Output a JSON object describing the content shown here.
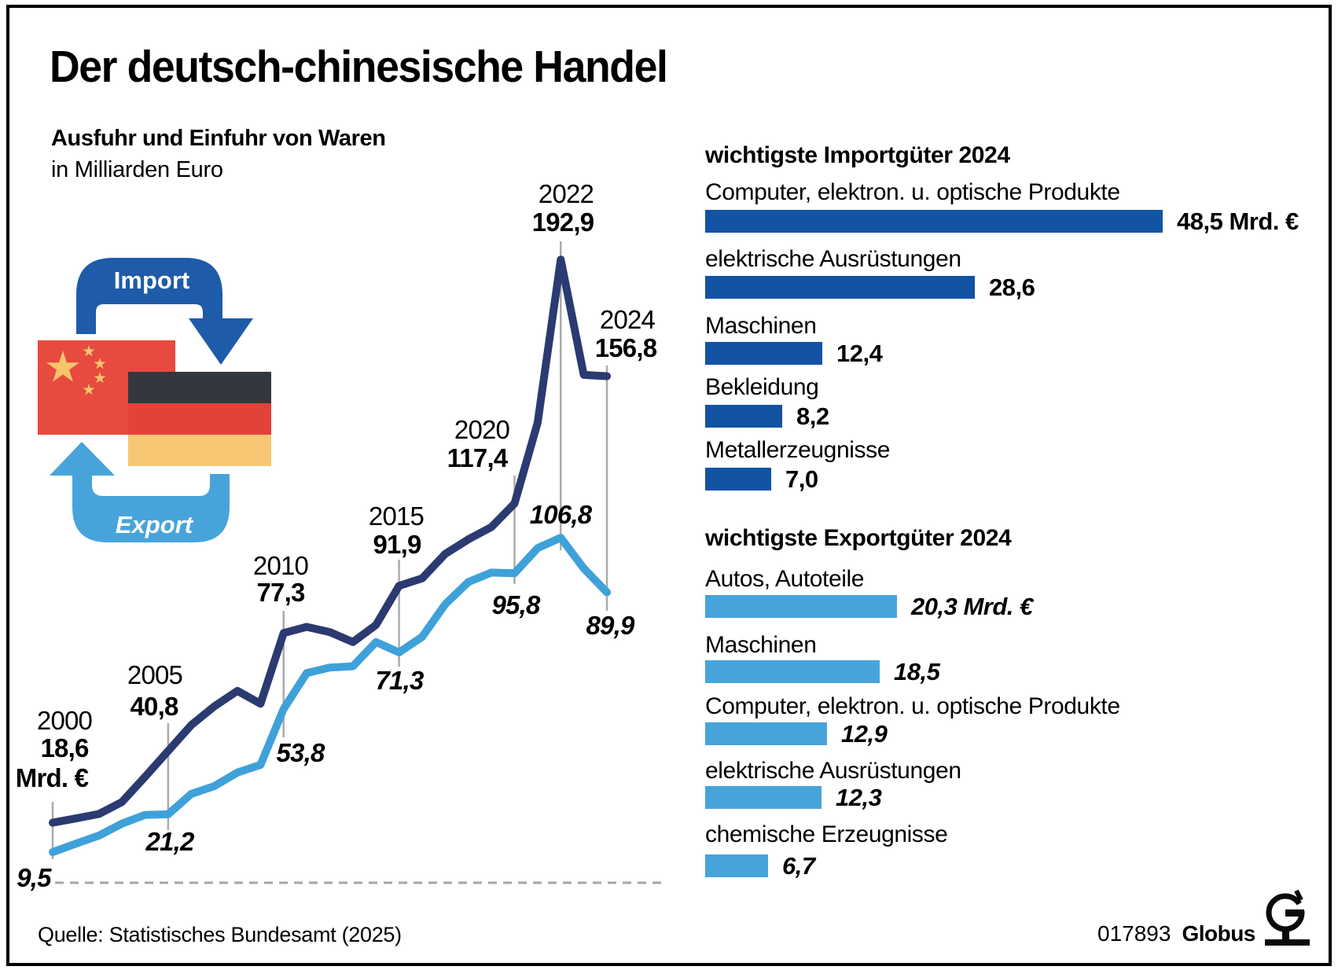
{
  "title": "Der deutsch-chinesische Handel",
  "line_chart_subtitle_bold": "Ausfuhr und Einfuhr von Waren",
  "line_chart_subtitle": "in Milliarden Euro",
  "flow": {
    "import_label": "Import",
    "export_label": "Export"
  },
  "line_labels": {
    "unit": "Mrd. €",
    "years": [
      "2000",
      "2005",
      "2010",
      "2015",
      "2020",
      "2022",
      "2024"
    ],
    "import_values": [
      "18,6",
      "40,8",
      "77,3",
      "91,9",
      "117,4",
      "192,9",
      "156,8"
    ],
    "export_values": [
      "9,5",
      "21,2",
      "53,8",
      "71,3",
      "95,8",
      "106,8",
      "89,9"
    ]
  },
  "chart_data": [
    {
      "type": "line",
      "title": "Ausfuhr und Einfuhr von Waren",
      "ylabel": "in Milliarden Euro",
      "x": [
        2000,
        2001,
        2002,
        2003,
        2004,
        2005,
        2006,
        2007,
        2008,
        2009,
        2010,
        2011,
        2012,
        2013,
        2014,
        2015,
        2016,
        2017,
        2018,
        2019,
        2020,
        2021,
        2022,
        2023,
        2024
      ],
      "series": [
        {
          "name": "Einfuhr (Import)",
          "color": "#2B3A70",
          "values": [
            18.6,
            19.9,
            21.3,
            25.0,
            32.8,
            40.8,
            48.8,
            54.6,
            59.4,
            55.4,
            77.3,
            79.2,
            77.6,
            74.5,
            79.8,
            91.9,
            94.2,
            101.8,
            106.3,
            110.1,
            117.4,
            142.4,
            192.9,
            157.2,
            156.8
          ]
        },
        {
          "name": "Ausfuhr (Export)",
          "color": "#3FA1DA",
          "values": [
            9.5,
            12.1,
            14.6,
            18.3,
            21.0,
            21.2,
            27.5,
            29.9,
            34.1,
            36.5,
            53.8,
            64.9,
            66.6,
            67.0,
            74.5,
            71.3,
            76.1,
            86.2,
            93.1,
            96.0,
            95.8,
            103.6,
            106.8,
            97.3,
            89.9
          ]
        }
      ],
      "annotated_years": [
        2000,
        2005,
        2010,
        2015,
        2020,
        2022,
        2024
      ],
      "ylim": [
        0,
        200
      ],
      "grid": "vertical ticks at annotated years only, dashed zero baseline"
    },
    {
      "type": "bar",
      "title": "wichtigste Importgüter 2024",
      "unit": "Mrd. €",
      "color": "#1253A4",
      "categories": [
        "Computer, elektron. u. optische Produkte",
        "elektrische Ausrüstungen",
        "Maschinen",
        "Bekleidung",
        "Metallerzeugnisse"
      ],
      "values": [
        48.5,
        28.6,
        12.4,
        8.2,
        7.0
      ],
      "value_labels": [
        "48,5 Mrd. €",
        "28,6",
        "12,4",
        "8,2",
        "7,0"
      ]
    },
    {
      "type": "bar",
      "title": "wichtigste Exportgüter 2024",
      "unit": "Mrd. €",
      "color": "#47A4DA",
      "categories": [
        "Autos, Autoteile",
        "Maschinen",
        "Computer, elektron. u. optische Produkte",
        "elektrische Ausrüstungen",
        "chemische Erzeugnisse"
      ],
      "values": [
        20.3,
        18.5,
        12.9,
        12.3,
        6.7
      ],
      "value_labels": [
        "20,3 Mrd. €",
        "18,5",
        "12,9",
        "12,3",
        "6,7"
      ]
    }
  ],
  "footer": {
    "source": "Quelle: Statistisches Bundesamt (2025)",
    "code": "017893",
    "brand": "Globus"
  },
  "colors": {
    "import_line": "#2B3A70",
    "export_line": "#3FA1DA",
    "import_bar": "#1253A4",
    "export_bar": "#47A4DA",
    "import_arrow": "#1E5BA8",
    "export_arrow": "#47A4DA",
    "china_red": "#E74A3F",
    "star_gold": "#F6C46A",
    "germany_black": "#33383E",
    "germany_red": "#E2423A",
    "germany_gold": "#F7C774",
    "tick_gray": "#ABABAB"
  }
}
